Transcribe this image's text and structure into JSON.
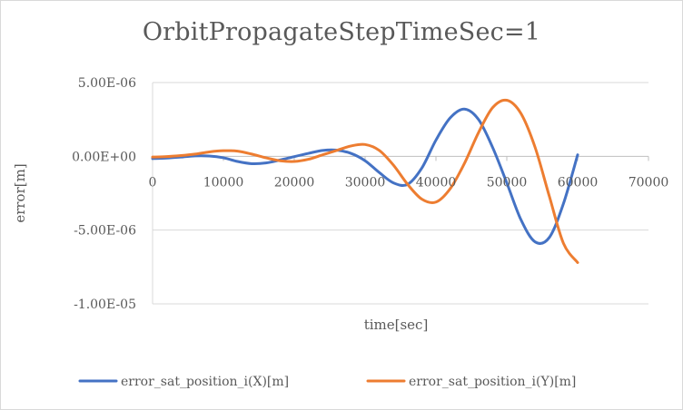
{
  "chart_data": {
    "type": "line",
    "title": "OrbitPropagateStepTimeSec=1",
    "xlabel": "time[sec]",
    "ylabel": "error[m]",
    "xlim": [
      0,
      70000
    ],
    "ylim": [
      -1e-05,
      5e-06
    ],
    "x_ticks": [
      0,
      10000,
      20000,
      30000,
      40000,
      50000,
      60000,
      70000
    ],
    "x_tick_labels": [
      "0",
      "10000",
      "20000",
      "30000",
      "40000",
      "50000",
      "60000",
      "70000"
    ],
    "y_ticks": [
      5e-06,
      0,
      -5e-06,
      -1e-05
    ],
    "y_tick_labels": [
      "5.00E-06",
      "0.00E+00",
      "-5.00E-06",
      "-1.00E-05"
    ],
    "grid": "horizontal",
    "legend_position": "bottom",
    "x": [
      0,
      2000,
      4000,
      6000,
      8000,
      10000,
      12000,
      14000,
      16000,
      18000,
      20000,
      22000,
      24000,
      26000,
      28000,
      30000,
      32000,
      34000,
      36000,
      38000,
      40000,
      42000,
      44000,
      46000,
      48000,
      50000,
      52000,
      54000,
      56000,
      58000,
      60000
    ],
    "series": [
      {
        "name": "error_sat_position_i(X)[m]",
        "color": "#4472c4",
        "values": [
          -1.5e-07,
          -1.2e-07,
          -5e-08,
          3e-08,
          2e-08,
          -1e-07,
          -3.5e-07,
          -5e-07,
          -4.5e-07,
          -2.5e-07,
          -2e-08,
          2e-07,
          4e-07,
          4.2e-07,
          2e-07,
          -3e-07,
          -1.1e-06,
          -1.8e-06,
          -1.9e-06,
          -8e-07,
          1.1e-06,
          2.6e-06,
          3.2e-06,
          2.5e-06,
          6e-07,
          -1.8e-06,
          -4.3e-06,
          -5.8e-06,
          -5.5e-06,
          -3.2e-06,
          1e-07
        ]
      },
      {
        "name": "error_sat_position_i(Y)[m]",
        "color": "#ed7d31",
        "values": [
          -5e-08,
          -2e-08,
          5e-08,
          1.5e-07,
          3e-07,
          3.8e-07,
          3.5e-07,
          1.5e-07,
          -1e-07,
          -3e-07,
          -3.5e-07,
          -2e-07,
          1e-07,
          4e-07,
          7e-07,
          8e-07,
          4e-07,
          -6e-07,
          -1.9e-06,
          -2.9e-06,
          -3.1e-06,
          -2.2e-06,
          -5e-07,
          1.6e-06,
          3.3e-06,
          3.8e-06,
          2.9e-06,
          6e-07,
          -2.7e-06,
          -5.9e-06,
          -7.2e-06
        ]
      }
    ]
  }
}
